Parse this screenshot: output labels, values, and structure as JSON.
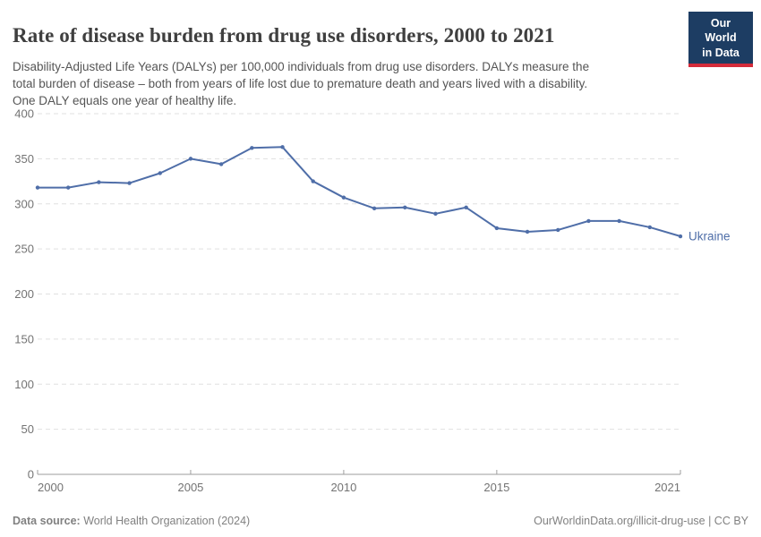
{
  "header": {
    "title": "Rate of disease burden from drug use disorders, 2000 to 2021",
    "subtitle": "Disability-Adjusted Life Years (DALYs) per 100,000 individuals from drug use disorders. DALYs measure the\ntotal burden of disease – both from years of life lost due to premature death and years lived with a disability.\nOne DALY equals one year of healthy life.",
    "logo": {
      "text": "Our World\nin Data",
      "bg_color": "#1d3d63",
      "stripe_color": "#d42b3a"
    }
  },
  "chart_data": {
    "type": "line",
    "title": "Rate of disease burden from drug use disorders, 2000 to 2021",
    "xlabel": "",
    "ylabel": "DALYs per 100,000 individuals",
    "xlim": [
      2000,
      2021
    ],
    "ylim": [
      0,
      400
    ],
    "x_ticks": [
      2000,
      2005,
      2010,
      2015,
      2021
    ],
    "y_ticks": [
      0,
      50,
      100,
      150,
      200,
      250,
      300,
      350,
      400
    ],
    "grid": "horizontal-dashed",
    "legend_position": "end-of-line-label",
    "series": [
      {
        "name": "Ukraine",
        "color": "#4f6ea8",
        "x": [
          2000,
          2001,
          2002,
          2003,
          2004,
          2005,
          2006,
          2007,
          2008,
          2009,
          2010,
          2011,
          2012,
          2013,
          2014,
          2015,
          2016,
          2017,
          2018,
          2019,
          2020,
          2021
        ],
        "values": [
          318,
          318,
          324,
          323,
          334,
          350,
          344,
          362,
          363,
          325,
          307,
          295,
          296,
          289,
          296,
          273,
          269,
          271,
          281,
          281,
          274,
          264
        ]
      }
    ],
    "axis_colors": {
      "grid": "#e0e0e0",
      "axis_line": "#9e9e9e",
      "tick_label": "#737373"
    }
  },
  "footer": {
    "datasource_label": "Data source:",
    "datasource_value": "World Health Organization (2024)",
    "attribution": "OurWorldinData.org/illicit-drug-use | CC BY"
  }
}
